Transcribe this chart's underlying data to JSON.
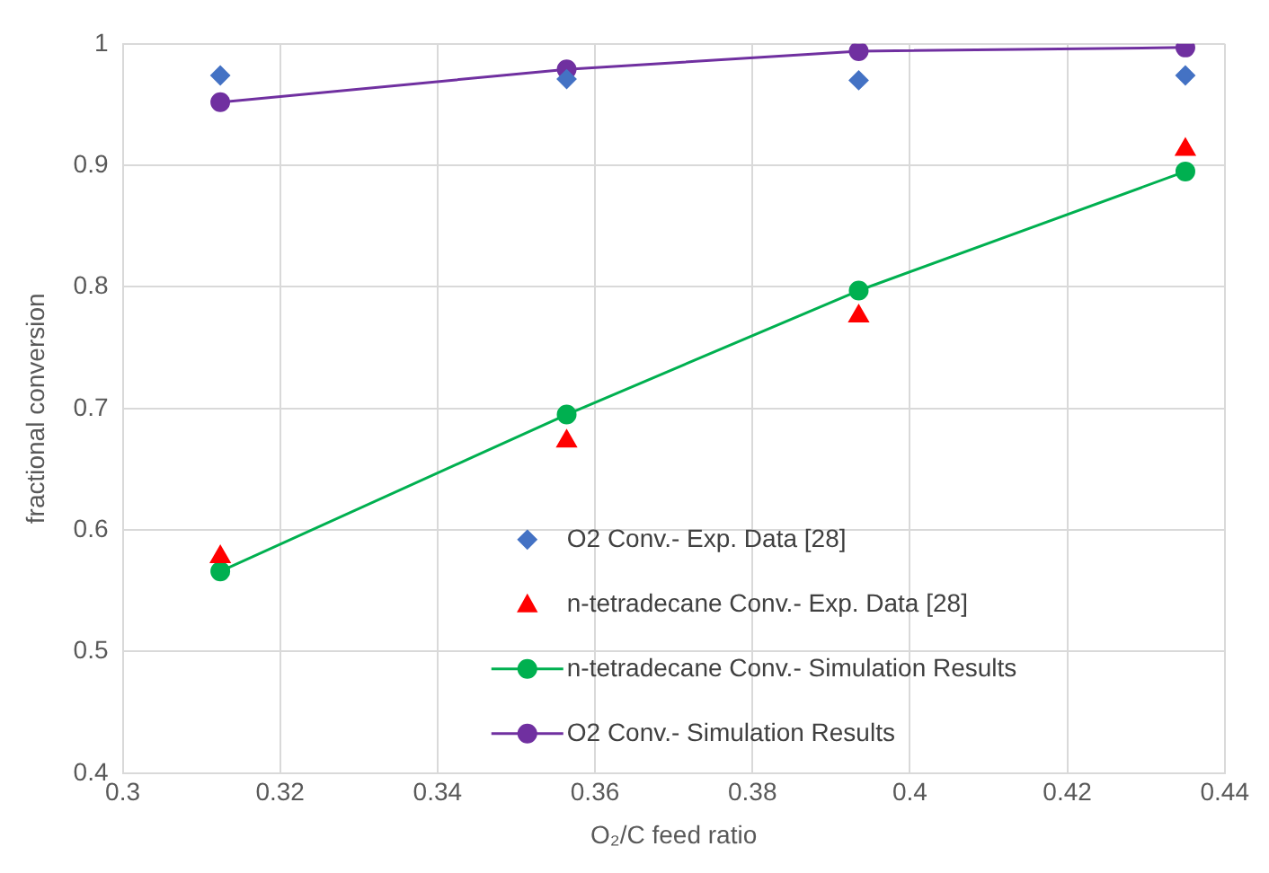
{
  "chart_data": {
    "type": "scatter",
    "xlabel": "O₂/C feed ratio",
    "ylabel": "fractional conversion",
    "xlim": [
      0.3,
      0.44
    ],
    "xticks": [
      0.3,
      0.32,
      0.34,
      0.36,
      0.38,
      0.4,
      0.42,
      0.44
    ],
    "ylim": [
      0.4,
      1
    ],
    "yticks": [
      0.4,
      0.5,
      0.6,
      0.7,
      0.8,
      0.9,
      1
    ],
    "grid": true,
    "legend": "bottom right",
    "x": [
      0.3124,
      0.3564,
      0.3935,
      0.435
    ],
    "series": [
      {
        "name": "O2 Conv.- Exp. Data [28]",
        "marker": "diamond",
        "color": "#4472c4",
        "values": [
          0.974,
          0.971,
          0.97,
          0.974
        ]
      },
      {
        "name": "n-tetradecane Conv.- Exp. Data [28]",
        "marker": "triangle",
        "color": "#ff0000",
        "values": [
          0.578,
          0.673,
          0.776,
          0.913
        ]
      },
      {
        "name": "n-tetradecane Conv.- Simulation Results",
        "type": "line",
        "marker": "circle",
        "color": "#00b050",
        "values": [
          0.566,
          0.695,
          0.797,
          0.895
        ]
      },
      {
        "name": "O2 Conv.- Simulation Results",
        "type": "line",
        "marker": "circle",
        "color": "#7030a0",
        "values": [
          0.952,
          0.979,
          0.994,
          0.997
        ]
      }
    ]
  }
}
